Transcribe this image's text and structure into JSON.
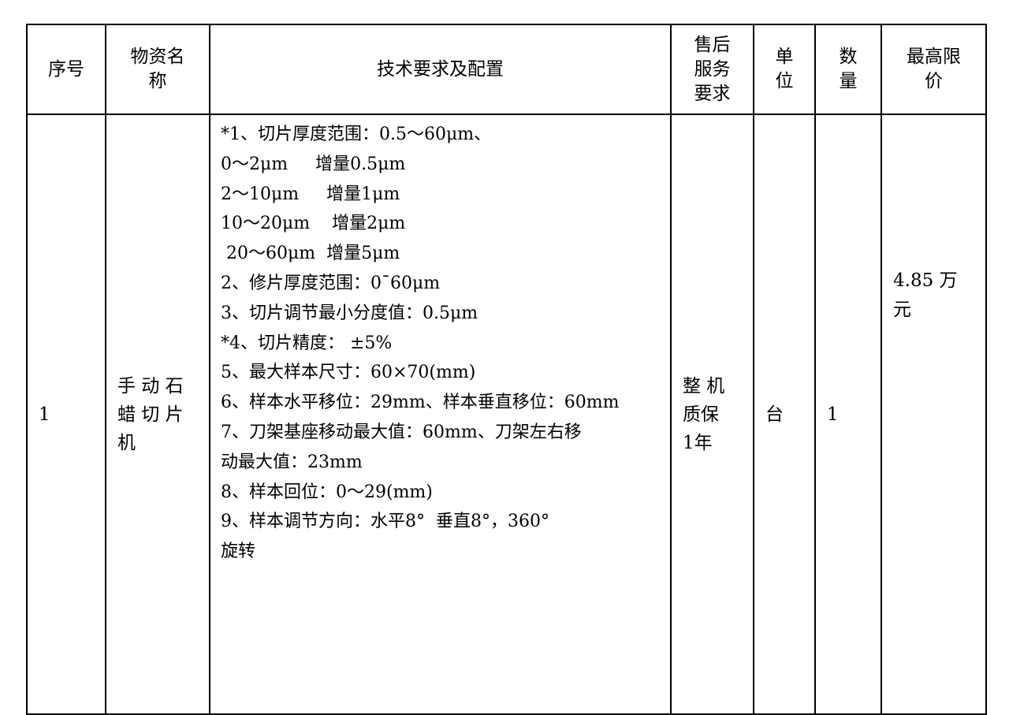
{
  "headers": [
    "序号",
    "物资名称",
    "技术要求及配置",
    "售后服务要求",
    "单位",
    "数量",
    "最高限价"
  ],
  "header_lines": {
    "name": [
      "物资名",
      "称"
    ],
    "service": [
      "售后",
      "服务",
      "要求"
    ],
    "unit": [
      "单",
      "位"
    ],
    "qty": [
      "数",
      "量"
    ],
    "price": [
      "最高限",
      "价"
    ]
  },
  "rows": [
    {
      "index": "1",
      "name_lines": [
        "手 动 石",
        "蜡 切 片",
        "机"
      ],
      "tech_lines": [
        "*1、切片厚度范围：0.5～60μm、",
        "0～2μm     增量0.5μm",
        "2～10μm     增量1μm",
        "10～20μm    增量2μm",
        " 20～60μm  增量5μm",
        "2、修片厚度范围：0¯60μm",
        "3、切片调节最小分度值：0.5μm",
        "*4、切片精度： ±5%",
        "5、最大样本尺寸：60×70(mm)",
        "6、样本水平移位：29mm、样本垂直移位：60mm",
        "7、刀架基座移动最大值：60mm、刀架左右移",
        "动最大值：23mm",
        "8、样本回位：0～29(mm)",
        "9、样本调节方向：水平8°  垂直8°，360°",
        "旋转"
      ],
      "service_lines": [
        "整 机",
        "质保",
        "1年"
      ],
      "unit": "台",
      "qty": "1",
      "price_lines": [
        "4.85 万",
        "元"
      ]
    }
  ]
}
